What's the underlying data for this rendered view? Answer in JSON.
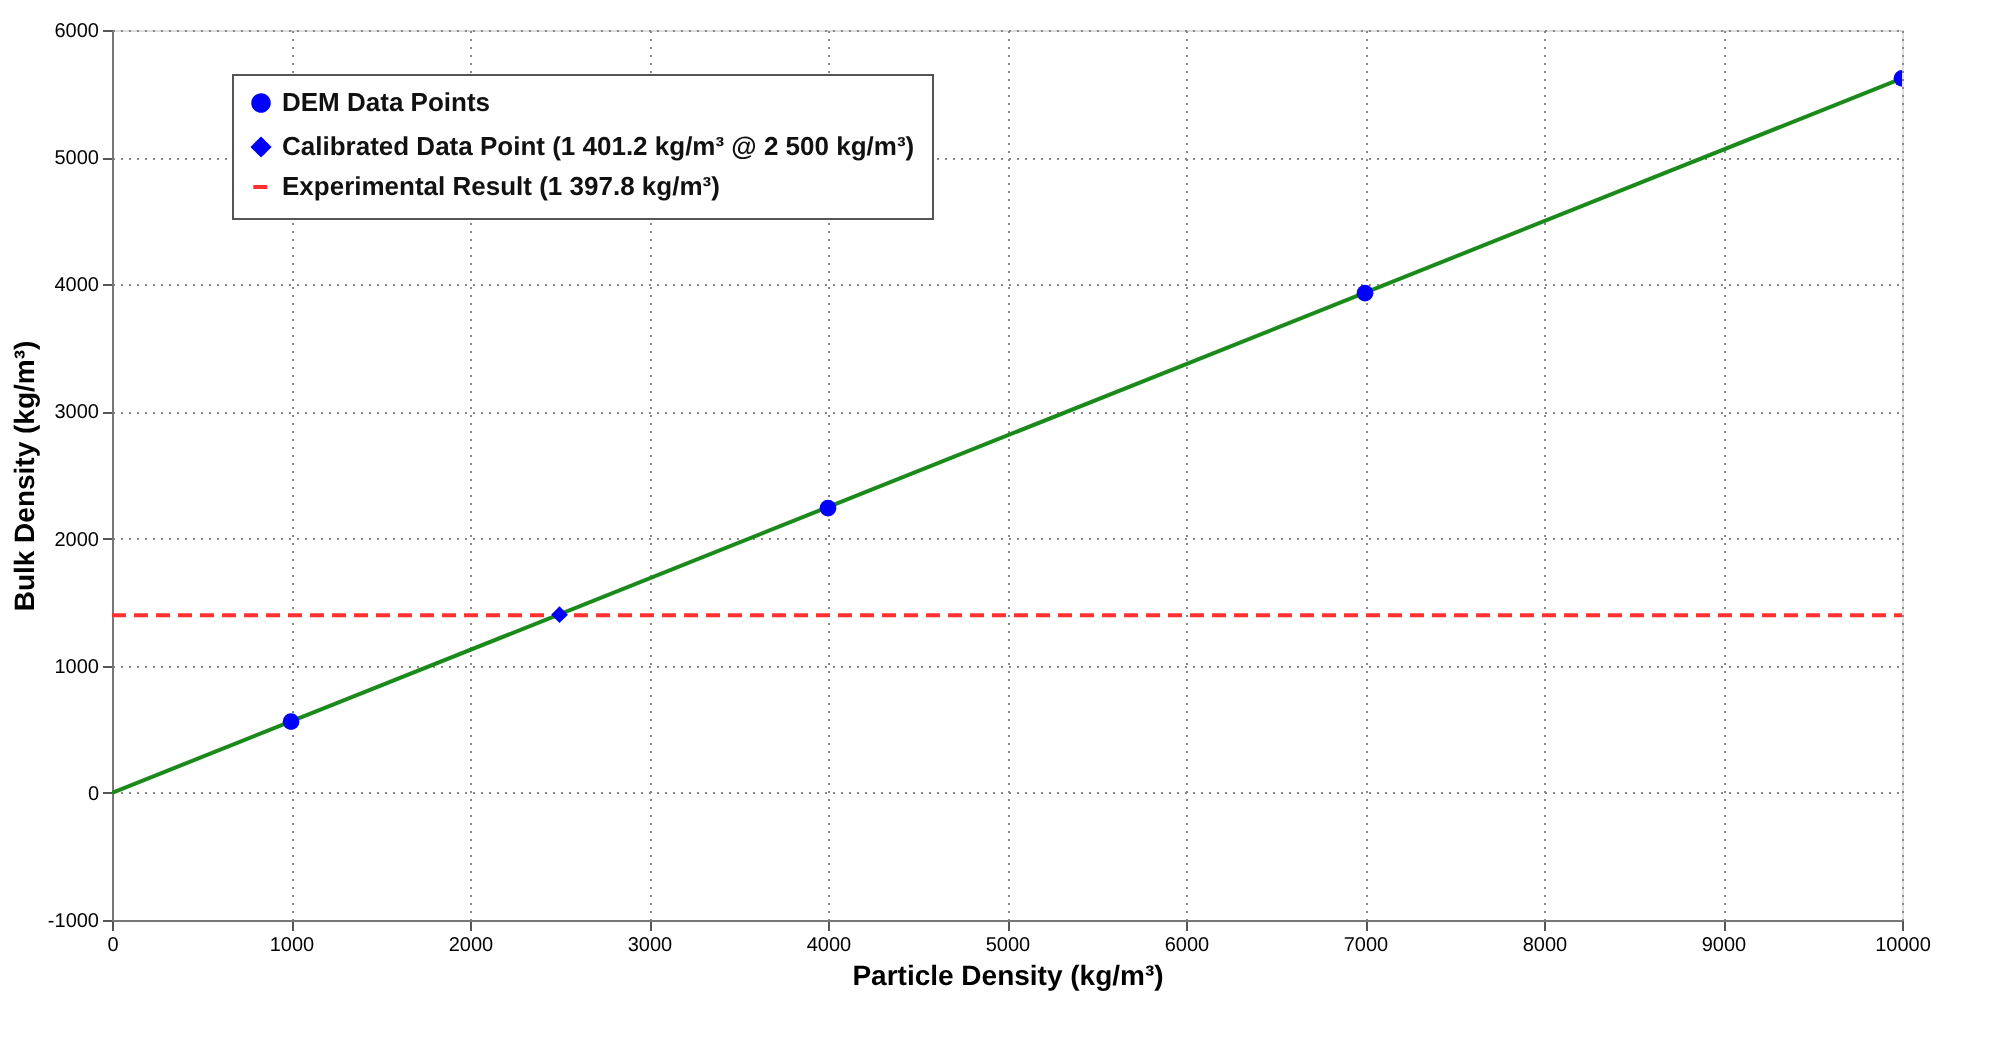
{
  "chart_data": {
    "type": "scatter",
    "xlabel": "Particle Density (kg/m³)",
    "ylabel": "Bulk Density (kg/m³)",
    "xlim": [
      0,
      10000
    ],
    "xticks": [
      0,
      1000,
      2000,
      3000,
      4000,
      5000,
      6000,
      7000,
      8000,
      9000,
      10000
    ],
    "ylim": [
      -1000,
      6000
    ],
    "yticks": [
      -1000,
      0,
      1000,
      2000,
      3000,
      4000,
      5000,
      6000
    ],
    "grid": true,
    "legend": "top left",
    "series": [
      {
        "name": "DEM Data Points",
        "color": "#0000ff",
        "marker": "circle",
        "x": [
          1000,
          4000,
          7000,
          10000
        ],
        "values": [
          560,
          2240,
          3930,
          5620
        ]
      },
      {
        "name": "Calibrated Data Point (1 401.2 kg/m³ @ 2 500 kg/m³)",
        "color": "#0000ff",
        "marker": "diamond",
        "x": [
          2500
        ],
        "values": [
          1401.2
        ]
      },
      {
        "name": "Experimental Result (1 397.8 kg/m³)",
        "type": "line",
        "color": "#ff3030",
        "line_style": "dashed",
        "marker": "none",
        "x": [
          0,
          10000
        ],
        "values": [
          1397.8,
          1397.8
        ]
      },
      {
        "type": "line",
        "color": "#1a8a1a",
        "line_style": "solid",
        "x": [
          0,
          10000
        ],
        "values": [
          0,
          5620
        ]
      }
    ]
  }
}
